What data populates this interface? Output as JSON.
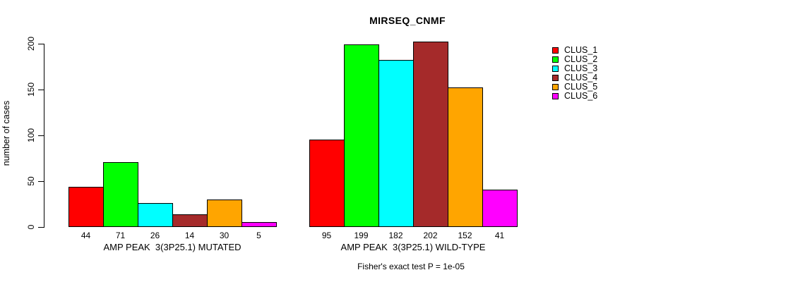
{
  "chart_data": {
    "type": "bar",
    "title": "MIRSEQ_CNMF",
    "ylabel": "number of cases",
    "ylim": [
      0,
      200
    ],
    "yticks": [
      0,
      50,
      100,
      150,
      200
    ],
    "grid": false,
    "legend_position": "right-inside",
    "bar_value_labels": true,
    "categories": [
      "AMP PEAK  3(3P25.1) MUTATED",
      "AMP PEAK  3(3P25.1) WILD-TYPE"
    ],
    "series": [
      {
        "name": "CLUS_1",
        "color": "#FF0000",
        "values": [
          44,
          95
        ]
      },
      {
        "name": "CLUS_2",
        "color": "#00FF00",
        "values": [
          71,
          199
        ]
      },
      {
        "name": "CLUS_3",
        "color": "#00FFFF",
        "values": [
          26,
          182
        ]
      },
      {
        "name": "CLUS_4",
        "color": "#A52A2A",
        "values": [
          14,
          202
        ]
      },
      {
        "name": "CLUS_5",
        "color": "#FFA500",
        "values": [
          30,
          152
        ]
      },
      {
        "name": "CLUS_6",
        "color": "#FF00FF",
        "values": [
          5,
          41
        ]
      }
    ],
    "annotation": "Fisher's exact test P = 1e-05"
  }
}
